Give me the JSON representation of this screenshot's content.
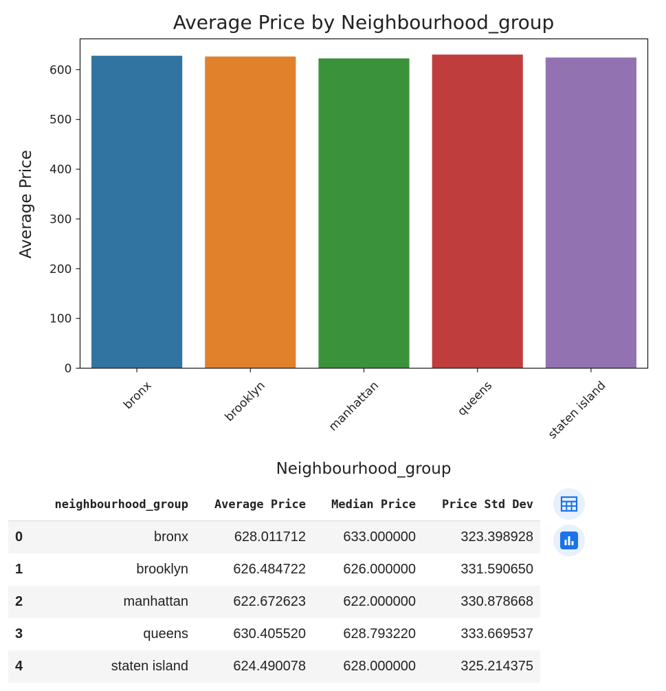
{
  "chart_data": {
    "type": "bar",
    "title": "Average Price by Neighbourhood_group",
    "xlabel": "Neighbourhood_group",
    "ylabel": "Average Price",
    "categories": [
      "bronx",
      "brooklyn",
      "manhattan",
      "queens",
      "staten island"
    ],
    "values": [
      628.011712,
      626.484722,
      622.672623,
      630.40552,
      624.490078
    ],
    "colors": [
      "#3274a1",
      "#e1812c",
      "#3a923a",
      "#c03d3e",
      "#9372b2"
    ],
    "yticks": [
      0,
      100,
      200,
      300,
      400,
      500,
      600
    ],
    "ylim": [
      0,
      662
    ],
    "grid": false
  },
  "table": {
    "columns": [
      "neighbourhood_group",
      "Average Price",
      "Median Price",
      "Price Std Dev"
    ],
    "rows": [
      {
        "index": "0",
        "cells": [
          "bronx",
          "628.011712",
          "633.000000",
          "323.398928"
        ]
      },
      {
        "index": "1",
        "cells": [
          "brooklyn",
          "626.484722",
          "626.000000",
          "331.590650"
        ]
      },
      {
        "index": "2",
        "cells": [
          "manhattan",
          "622.672623",
          "622.000000",
          "330.878668"
        ]
      },
      {
        "index": "3",
        "cells": [
          "queens",
          "630.405520",
          "628.793220",
          "333.669537"
        ]
      },
      {
        "index": "4",
        "cells": [
          "staten island",
          "624.490078",
          "628.000000",
          "325.214375"
        ]
      }
    ]
  },
  "side_buttons": {
    "table_icon": "table-grid-icon",
    "chart_icon": "bar-chart-icon",
    "accent": "#1a73e8"
  }
}
